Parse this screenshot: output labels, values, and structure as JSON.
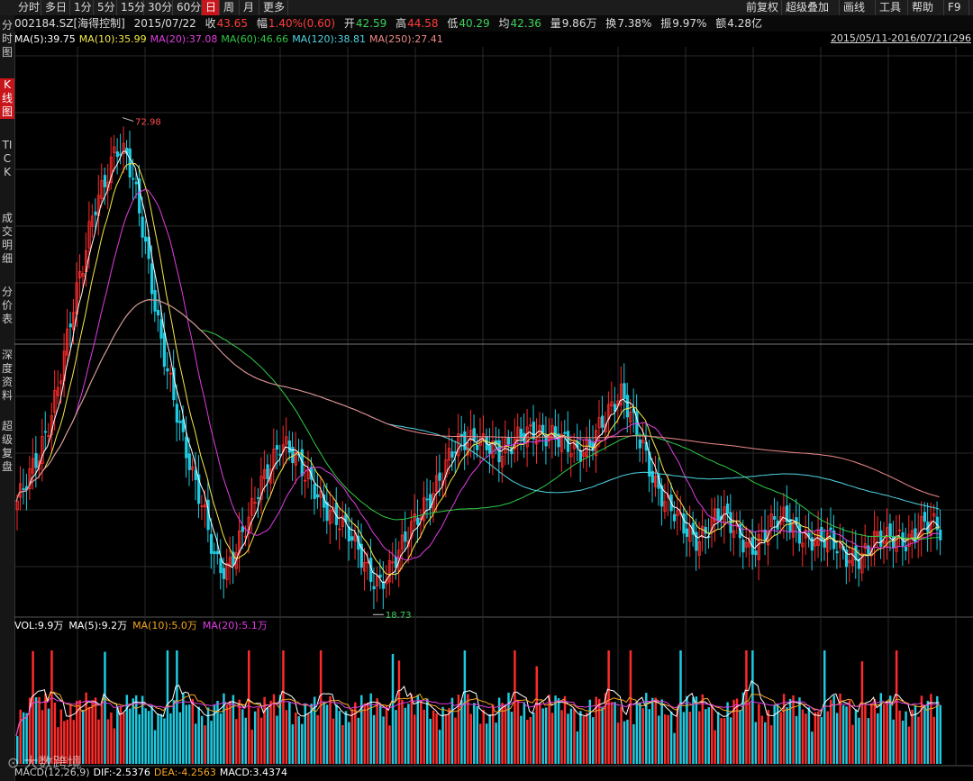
{
  "toolbar": {
    "left_items": [
      {
        "label": "分时"
      },
      {
        "label": "多日"
      },
      {
        "label": "1分"
      },
      {
        "label": "5分"
      },
      {
        "label": "15分"
      },
      {
        "label": "30分"
      },
      {
        "label": "60分"
      },
      {
        "label": "日",
        "active": true
      },
      {
        "label": "周"
      },
      {
        "label": "月"
      },
      {
        "label": "更多"
      }
    ],
    "right_items": [
      {
        "label": "前复权"
      },
      {
        "label": "超级叠加"
      },
      {
        "label": "画线"
      },
      {
        "label": "工具"
      },
      {
        "label": "帮助"
      },
      {
        "label": "F9"
      }
    ]
  },
  "sidebar": [
    {
      "label": "分时图"
    },
    {
      "label": "K线图",
      "active": true
    },
    {
      "label": "TICK"
    },
    {
      "label": "成交明细"
    },
    {
      "label": "分价表"
    },
    {
      "label": "深度资料"
    },
    {
      "label": "超级复盘"
    }
  ],
  "quote": {
    "code": "002184.SZ[海得控制]",
    "date": "2015/07/22",
    "close_label": "收",
    "close": "43.65",
    "change_label": "幅",
    "change": "1.40%(0.60)",
    "open_label": "开",
    "open": "42.59",
    "high_label": "高",
    "high": "44.58",
    "low_label": "低",
    "low": "40.29",
    "avg_label": "均",
    "avg": "42.36",
    "vol_label": "量",
    "vol": "9.86万",
    "turnover_label": "换",
    "turnover": "7.38%",
    "amplitude_label": "振",
    "amplitude": "9.97%",
    "amount_label": "额",
    "amount": "4.28亿"
  },
  "ma_legend": [
    {
      "text": "MA(5):39.75",
      "color": "#ffffff"
    },
    {
      "text": "MA(10):35.99",
      "color": "#f5e94a"
    },
    {
      "text": "MA(20):37.08",
      "color": "#e23de3"
    },
    {
      "text": "MA(60):46.66",
      "color": "#2fcb45"
    },
    {
      "text": "MA(120):38.81",
      "color": "#4fd6e6"
    },
    {
      "text": "MA(250):27.41",
      "color": "#f08a8a"
    }
  ],
  "date_range": "2015/05/11-2016/07/21(296",
  "price_markers": {
    "high": "72.98",
    "low": "18.73"
  },
  "vol_legend": [
    {
      "text": "VOL:9.9万",
      "color": "#ffffff"
    },
    {
      "text": "MA(5):9.2万",
      "color": "#ffffff"
    },
    {
      "text": "MA(10):5.0万",
      "color": "#f5a623"
    },
    {
      "text": "MA(20):5.1万",
      "color": "#e23de3"
    }
  ],
  "macd_legend": [
    {
      "text": "MACD(12,26,9)",
      "color": "#cccccc"
    },
    {
      "text": "DIF:-2.5376",
      "color": "#ffffff"
    },
    {
      "text": "DEA:-4.2563",
      "color": "#f5a623"
    },
    {
      "text": "MACD:3.4374",
      "color": "#ffffff"
    }
  ],
  "watermark": "大数跨境",
  "colors": {
    "up": "#ff2b2b",
    "down": "#1ecbe1",
    "grid": "#2a2a2a"
  },
  "chart_data": {
    "type": "candlestick",
    "title": "",
    "price_range": [
      15,
      80
    ],
    "close_path": [
      28,
      30,
      33,
      38,
      44,
      50,
      55,
      62,
      66,
      70,
      68,
      62,
      55,
      48,
      42,
      35,
      30,
      27,
      22,
      20,
      22,
      25,
      30,
      33,
      35,
      33,
      31,
      30,
      28,
      26,
      24,
      22,
      20,
      19,
      20,
      22,
      25,
      28,
      30,
      32,
      34,
      35,
      36,
      35,
      33,
      34,
      36,
      37,
      36,
      35,
      34,
      34,
      35,
      37,
      38,
      40,
      38,
      35,
      30,
      27,
      26,
      25,
      24,
      25,
      26,
      25,
      24,
      23,
      24,
      25,
      26,
      25,
      24,
      23,
      23,
      22,
      22,
      22,
      23,
      23,
      24,
      24,
      25,
      25,
      24
    ]
  }
}
